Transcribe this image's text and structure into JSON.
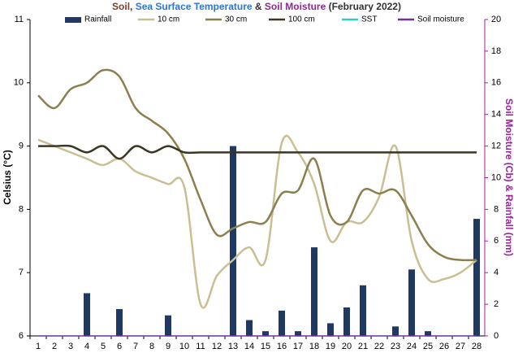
{
  "chart_data": {
    "type": "combo",
    "title_parts": [
      {
        "text": "Soil",
        "color": "#7b3f2a"
      },
      {
        "text": ", ",
        "color": "#333333"
      },
      {
        "text": "Sea Surface Temperature",
        "color": "#2e75d6"
      },
      {
        "text": " & ",
        "color": "#333333"
      },
      {
        "text": "Soil Moisture",
        "color": "#8e2b8e"
      },
      {
        "text": " (February 2022)",
        "color": "#333333"
      }
    ],
    "y_label": "Celsius (°C)",
    "y2_label": "Soil Moisture (Cb) & Rainfall (mm)",
    "y2_color": "#a020a0",
    "categories": [
      "1",
      "2",
      "3",
      "4",
      "5",
      "6",
      "7",
      "8",
      "9",
      "10",
      "11",
      "12",
      "13",
      "14",
      "15",
      "16",
      "17",
      "18",
      "19",
      "20",
      "21",
      "22",
      "23",
      "24",
      "25",
      "26",
      "27",
      "28"
    ],
    "ylim": [
      6,
      11
    ],
    "yticks": [
      6,
      7,
      8,
      9,
      10,
      11
    ],
    "y2lim": [
      0,
      20
    ],
    "y2ticks": [
      0,
      2,
      4,
      6,
      8,
      10,
      12,
      14,
      16,
      18,
      20
    ],
    "grid": false,
    "legend": "top",
    "series": [
      {
        "name": "Rainfall",
        "type": "bar",
        "axis": "y2",
        "color": "#1f3864",
        "values": [
          0,
          0,
          0,
          2.7,
          0,
          1.7,
          0,
          0,
          1.3,
          0,
          0,
          0,
          12,
          1.0,
          0.3,
          1.6,
          0.3,
          5.6,
          0.8,
          1.8,
          3.2,
          0,
          0.6,
          4.2,
          0.3,
          0,
          0,
          7.4
        ]
      },
      {
        "name": "10 cm",
        "type": "line",
        "color": "#c8bf93",
        "values": [
          9.1,
          9.0,
          8.9,
          8.8,
          8.7,
          8.8,
          8.6,
          8.5,
          8.4,
          8.35,
          6.5,
          6.95,
          7.2,
          7.4,
          7.2,
          9.05,
          8.9,
          8.4,
          7.5,
          7.8,
          7.8,
          8.2,
          9.0,
          7.5,
          6.9,
          6.9,
          7.0,
          7.2
        ]
      },
      {
        "name": "30 cm",
        "type": "line",
        "color": "#8c7f4e",
        "values": [
          9.8,
          9.6,
          9.9,
          10.0,
          10.2,
          10.1,
          9.6,
          9.4,
          9.2,
          8.8,
          8.15,
          7.6,
          7.7,
          7.8,
          7.8,
          8.25,
          8.3,
          8.8,
          7.9,
          7.8,
          8.3,
          8.25,
          8.3,
          7.9,
          7.45,
          7.25,
          7.2,
          7.2
        ]
      },
      {
        "name": "100 cm",
        "type": "line",
        "color": "#3b3524",
        "values": [
          9.0,
          9.0,
          9.0,
          8.9,
          9.0,
          8.8,
          9.0,
          8.9,
          9.0,
          8.9,
          8.9,
          8.9,
          8.9,
          8.9,
          8.9,
          8.9,
          8.9,
          8.9,
          8.9,
          8.9,
          8.9,
          8.9,
          8.9,
          8.9,
          8.9,
          8.9,
          8.9,
          8.9
        ]
      },
      {
        "name": "SST",
        "type": "line",
        "color": "#33cccc",
        "values": [
          null,
          null,
          null,
          null,
          null,
          null,
          null,
          null,
          null,
          null,
          null,
          null,
          null,
          null,
          null,
          null,
          null,
          null,
          null,
          null,
          null,
          null,
          null,
          null,
          null,
          null,
          null,
          null
        ]
      },
      {
        "name": "Soil moisture",
        "type": "line",
        "axis": "y2",
        "color": "#7030a0",
        "values": [
          0,
          0,
          0,
          0,
          0,
          0,
          0,
          0,
          0,
          0,
          0,
          0,
          0,
          0,
          0,
          0,
          0,
          0,
          0,
          0,
          0,
          0,
          0,
          0,
          0,
          0,
          0,
          0
        ]
      }
    ]
  }
}
